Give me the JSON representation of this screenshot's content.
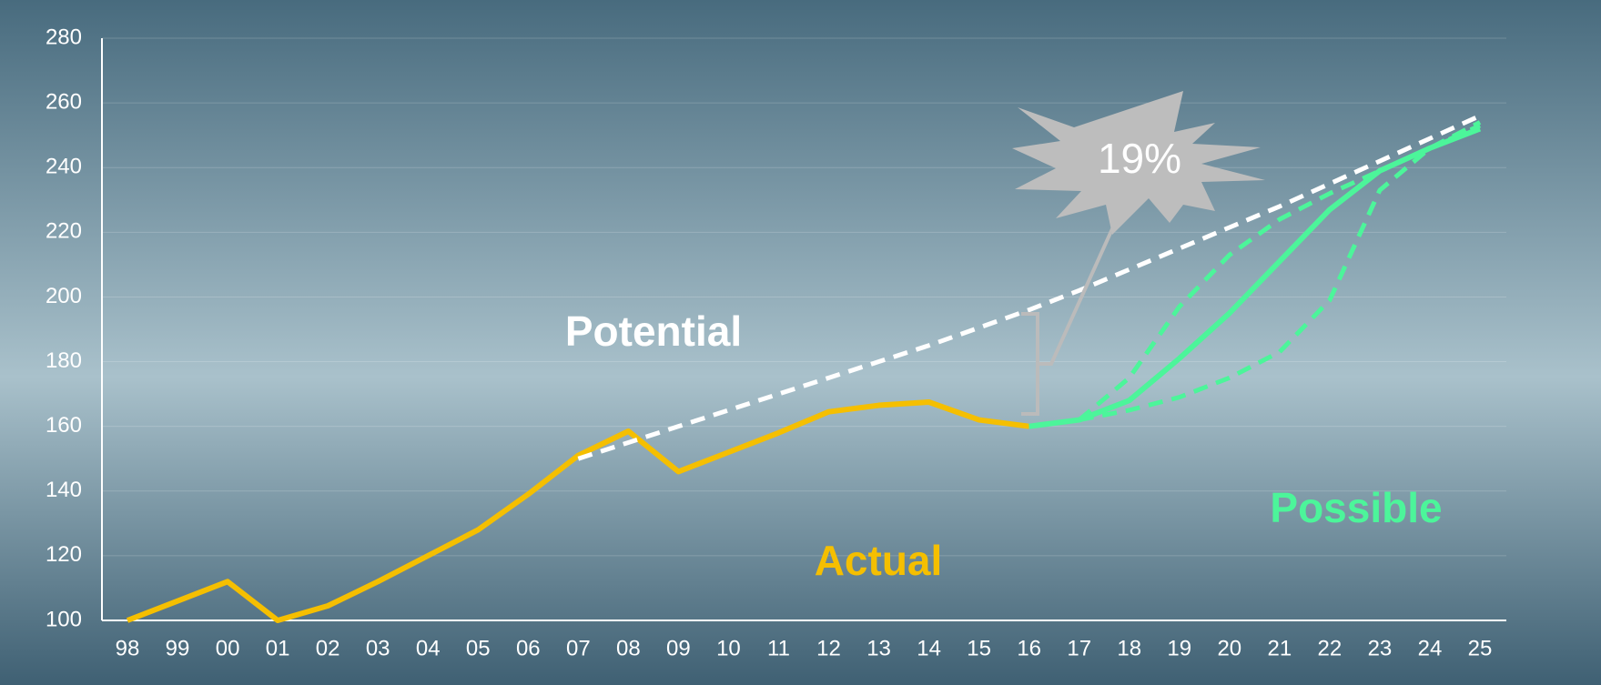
{
  "chart_data": {
    "type": "line",
    "categories": [
      "98",
      "99",
      "00",
      "01",
      "02",
      "03",
      "04",
      "05",
      "06",
      "07",
      "08",
      "09",
      "10",
      "11",
      "12",
      "13",
      "14",
      "15",
      "16",
      "17",
      "18",
      "19",
      "20",
      "21",
      "22",
      "23",
      "24",
      "25"
    ],
    "ylim": [
      100,
      280
    ],
    "yticks": [
      100,
      120,
      140,
      160,
      180,
      200,
      220,
      240,
      260,
      280
    ],
    "grid": true,
    "annotation": "19%",
    "series": [
      {
        "name": "Actual",
        "color": "#f5bf00",
        "dashed": false,
        "values": [
          100,
          106,
          112,
          100,
          104.5,
          112,
          120,
          128,
          139,
          151,
          158.5,
          146,
          152,
          158,
          164.5,
          166.5,
          167.5,
          162,
          160,
          null,
          null,
          null,
          null,
          null,
          null,
          null,
          null,
          null
        ]
      },
      {
        "name": "Potential",
        "color": "#ffffff",
        "dashed": true,
        "values": [
          null,
          null,
          null,
          null,
          null,
          null,
          null,
          null,
          null,
          150,
          155,
          160,
          165,
          170,
          175,
          180,
          185,
          190.5,
          196,
          202,
          208.5,
          215,
          221.5,
          228,
          235,
          242,
          249,
          256
        ]
      },
      {
        "name": "Possible",
        "color": "#4cf59a",
        "dashed": false,
        "values": [
          null,
          null,
          null,
          null,
          null,
          null,
          null,
          null,
          null,
          null,
          null,
          null,
          null,
          null,
          null,
          null,
          null,
          null,
          160,
          162,
          168,
          181,
          195,
          211,
          227,
          239,
          246,
          252
        ]
      },
      {
        "color": "#4cf59a",
        "dashed": true,
        "values": [
          null,
          null,
          null,
          null,
          null,
          null,
          null,
          null,
          null,
          null,
          null,
          null,
          null,
          null,
          null,
          null,
          null,
          null,
          null,
          162,
          175,
          197,
          213,
          224,
          232,
          239,
          246,
          253
        ]
      },
      {
        "color": "#4cf59a",
        "dashed": true,
        "values": [
          null,
          null,
          null,
          null,
          null,
          null,
          null,
          null,
          null,
          null,
          null,
          null,
          null,
          null,
          null,
          null,
          null,
          null,
          null,
          162,
          165,
          169,
          175,
          183,
          199,
          233,
          246,
          254
        ]
      }
    ]
  }
}
